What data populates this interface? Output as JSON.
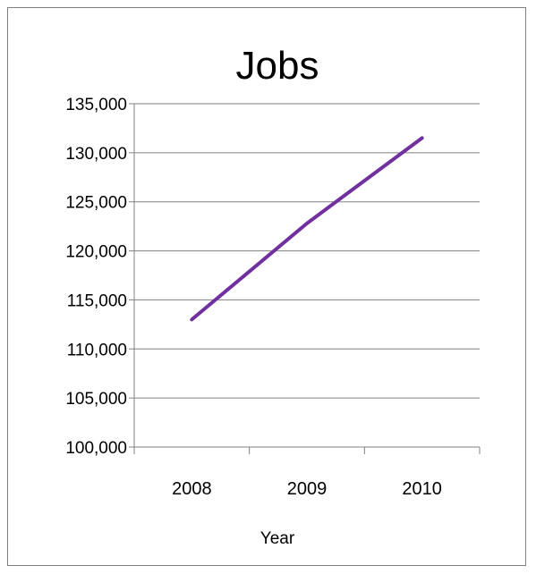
{
  "chart_data": {
    "type": "line",
    "title": "Jobs",
    "xlabel": "Year",
    "ylabel": "",
    "categories": [
      "2008",
      "2009",
      "2010"
    ],
    "series": [
      {
        "values": [
          113000,
          122800,
          131500
        ]
      }
    ],
    "ylim": [
      100000,
      135000
    ],
    "yticks": [
      100000,
      105000,
      110000,
      115000,
      120000,
      125000,
      130000,
      135000
    ],
    "ytick_labels": [
      "100,000",
      "105,000",
      "110,000",
      "115,000",
      "120,000",
      "125,000",
      "130,000",
      "135,000"
    ],
    "grid": true,
    "legend": "none",
    "colors": {
      "line": "#7030a0",
      "grid": "#808080",
      "axis": "#808080"
    }
  }
}
